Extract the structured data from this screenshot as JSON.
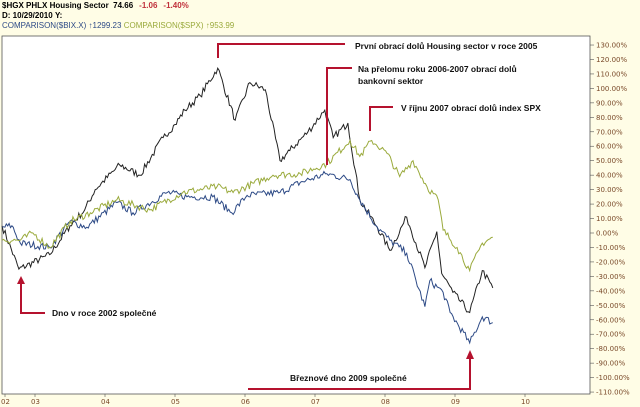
{
  "header": {
    "symbol": "$HGX PHLX Housing Sector",
    "last": "74.66",
    "change": "-1.06",
    "change_pct": "-1.40%",
    "date_label": "D: 10/29/2010",
    "y_label": "Y:",
    "comp1": "COMPARISON($BIX.X) ↑1299.23",
    "comp2": "COMPARISON($SPX) ↑953.99"
  },
  "colors": {
    "hgx": "#222222",
    "bkx": "#2d4a86",
    "spx": "#9aaa3c",
    "annotation": "#b5122e",
    "background": "#fffde6"
  },
  "chart_data": {
    "type": "line",
    "xlabel": "",
    "ylabel": "",
    "x_ticks": [
      "02",
      "03",
      "04",
      "05",
      "06",
      "07",
      "08",
      "09",
      "10"
    ],
    "y_ticks": [
      "130.00%",
      "120.00%",
      "110.00%",
      "100.00%",
      "90.00%",
      "80.00%",
      "70.00%",
      "60.00%",
      "50.00%",
      "40.00%",
      "30.00%",
      "20.00%",
      "10.00%",
      "0.00%",
      "-10.00%",
      "-20.00%",
      "-30.00%",
      "-40.00%",
      "-50.00%",
      "-60.00%",
      "-70.00%",
      "-80.00%",
      "-90.00%",
      "-100.00%",
      "-110.00%"
    ],
    "ylim": [
      -110,
      130
    ],
    "xlim": [
      2002.5,
      2010.9
    ],
    "y_axis_position": "right",
    "series": [
      {
        "key": "hgx",
        "points": [
          [
            2002.53,
            5
          ],
          [
            2002.77,
            -25
          ],
          [
            2003.21,
            -15
          ],
          [
            2003.5,
            5
          ],
          [
            2003.71,
            16
          ],
          [
            2003.86,
            30
          ],
          [
            2004.21,
            47
          ],
          [
            2004.5,
            40
          ],
          [
            2004.83,
            66
          ],
          [
            2005.0,
            75
          ],
          [
            2005.14,
            85
          ],
          [
            2005.36,
            95
          ],
          [
            2005.61,
            114
          ],
          [
            2005.86,
            78
          ],
          [
            2006.07,
            104
          ],
          [
            2006.29,
            99
          ],
          [
            2006.5,
            50
          ],
          [
            2006.64,
            57
          ],
          [
            2006.9,
            70
          ],
          [
            2007.14,
            85
          ],
          [
            2007.26,
            66
          ],
          [
            2007.47,
            76
          ],
          [
            2007.64,
            23
          ],
          [
            2007.89,
            4
          ],
          [
            2008.07,
            -12
          ],
          [
            2008.31,
            11
          ],
          [
            2008.57,
            -24
          ],
          [
            2008.74,
            1
          ],
          [
            2008.81,
            -28
          ],
          [
            2008.97,
            -41
          ],
          [
            2009.21,
            -55
          ],
          [
            2009.39,
            -26
          ],
          [
            2009.54,
            -38
          ]
        ]
      },
      {
        "key": "bkx",
        "points": [
          [
            2002.53,
            4
          ],
          [
            2002.67,
            5
          ],
          [
            2002.79,
            -7
          ],
          [
            2003.21,
            -10
          ],
          [
            2003.5,
            8
          ],
          [
            2003.74,
            4
          ],
          [
            2004.17,
            21
          ],
          [
            2004.4,
            14
          ],
          [
            2004.89,
            28
          ],
          [
            2005.17,
            25
          ],
          [
            2005.54,
            25
          ],
          [
            2005.81,
            14
          ],
          [
            2006.03,
            26
          ],
          [
            2006.5,
            28
          ],
          [
            2006.79,
            35
          ],
          [
            2007.17,
            41
          ],
          [
            2007.5,
            37
          ],
          [
            2007.64,
            23
          ],
          [
            2007.89,
            4
          ],
          [
            2008.07,
            -5
          ],
          [
            2008.31,
            -14
          ],
          [
            2008.57,
            -51
          ],
          [
            2008.64,
            -33
          ],
          [
            2008.83,
            -41
          ],
          [
            2008.93,
            -55
          ],
          [
            2009.21,
            -76
          ],
          [
            2009.39,
            -58
          ],
          [
            2009.54,
            -62
          ]
        ]
      },
      {
        "key": "spx",
        "points": [
          [
            2002.53,
            -5
          ],
          [
            2002.79,
            -5
          ],
          [
            2002.97,
            0
          ],
          [
            2003.21,
            -10
          ],
          [
            2003.5,
            8
          ],
          [
            2003.79,
            14
          ],
          [
            2004.17,
            23
          ],
          [
            2004.64,
            16
          ],
          [
            2005.11,
            28
          ],
          [
            2005.6,
            32
          ],
          [
            2005.83,
            28
          ],
          [
            2006.4,
            40
          ],
          [
            2006.79,
            41
          ],
          [
            2007.17,
            48
          ],
          [
            2007.5,
            64
          ],
          [
            2007.64,
            53
          ],
          [
            2007.81,
            64
          ],
          [
            2008.03,
            55
          ],
          [
            2008.21,
            39
          ],
          [
            2008.4,
            50
          ],
          [
            2008.6,
            32
          ],
          [
            2008.76,
            23
          ],
          [
            2008.83,
            2
          ],
          [
            2009.03,
            -10
          ],
          [
            2009.21,
            -26
          ],
          [
            2009.39,
            -7
          ],
          [
            2009.54,
            -3
          ]
        ]
      }
    ]
  },
  "annotations": {
    "a1": "První obrací dolů Housing sector v roce 2005",
    "a2_line1": "Na přelomu roku 2006-2007 obrací dolů",
    "a2_line2": "bankovní sektor",
    "a3": "V říjnu 2007 obrací dolů index SPX",
    "a4": "Dno v roce 2002 společné",
    "a5": "Březnové dno 2009 společné"
  }
}
